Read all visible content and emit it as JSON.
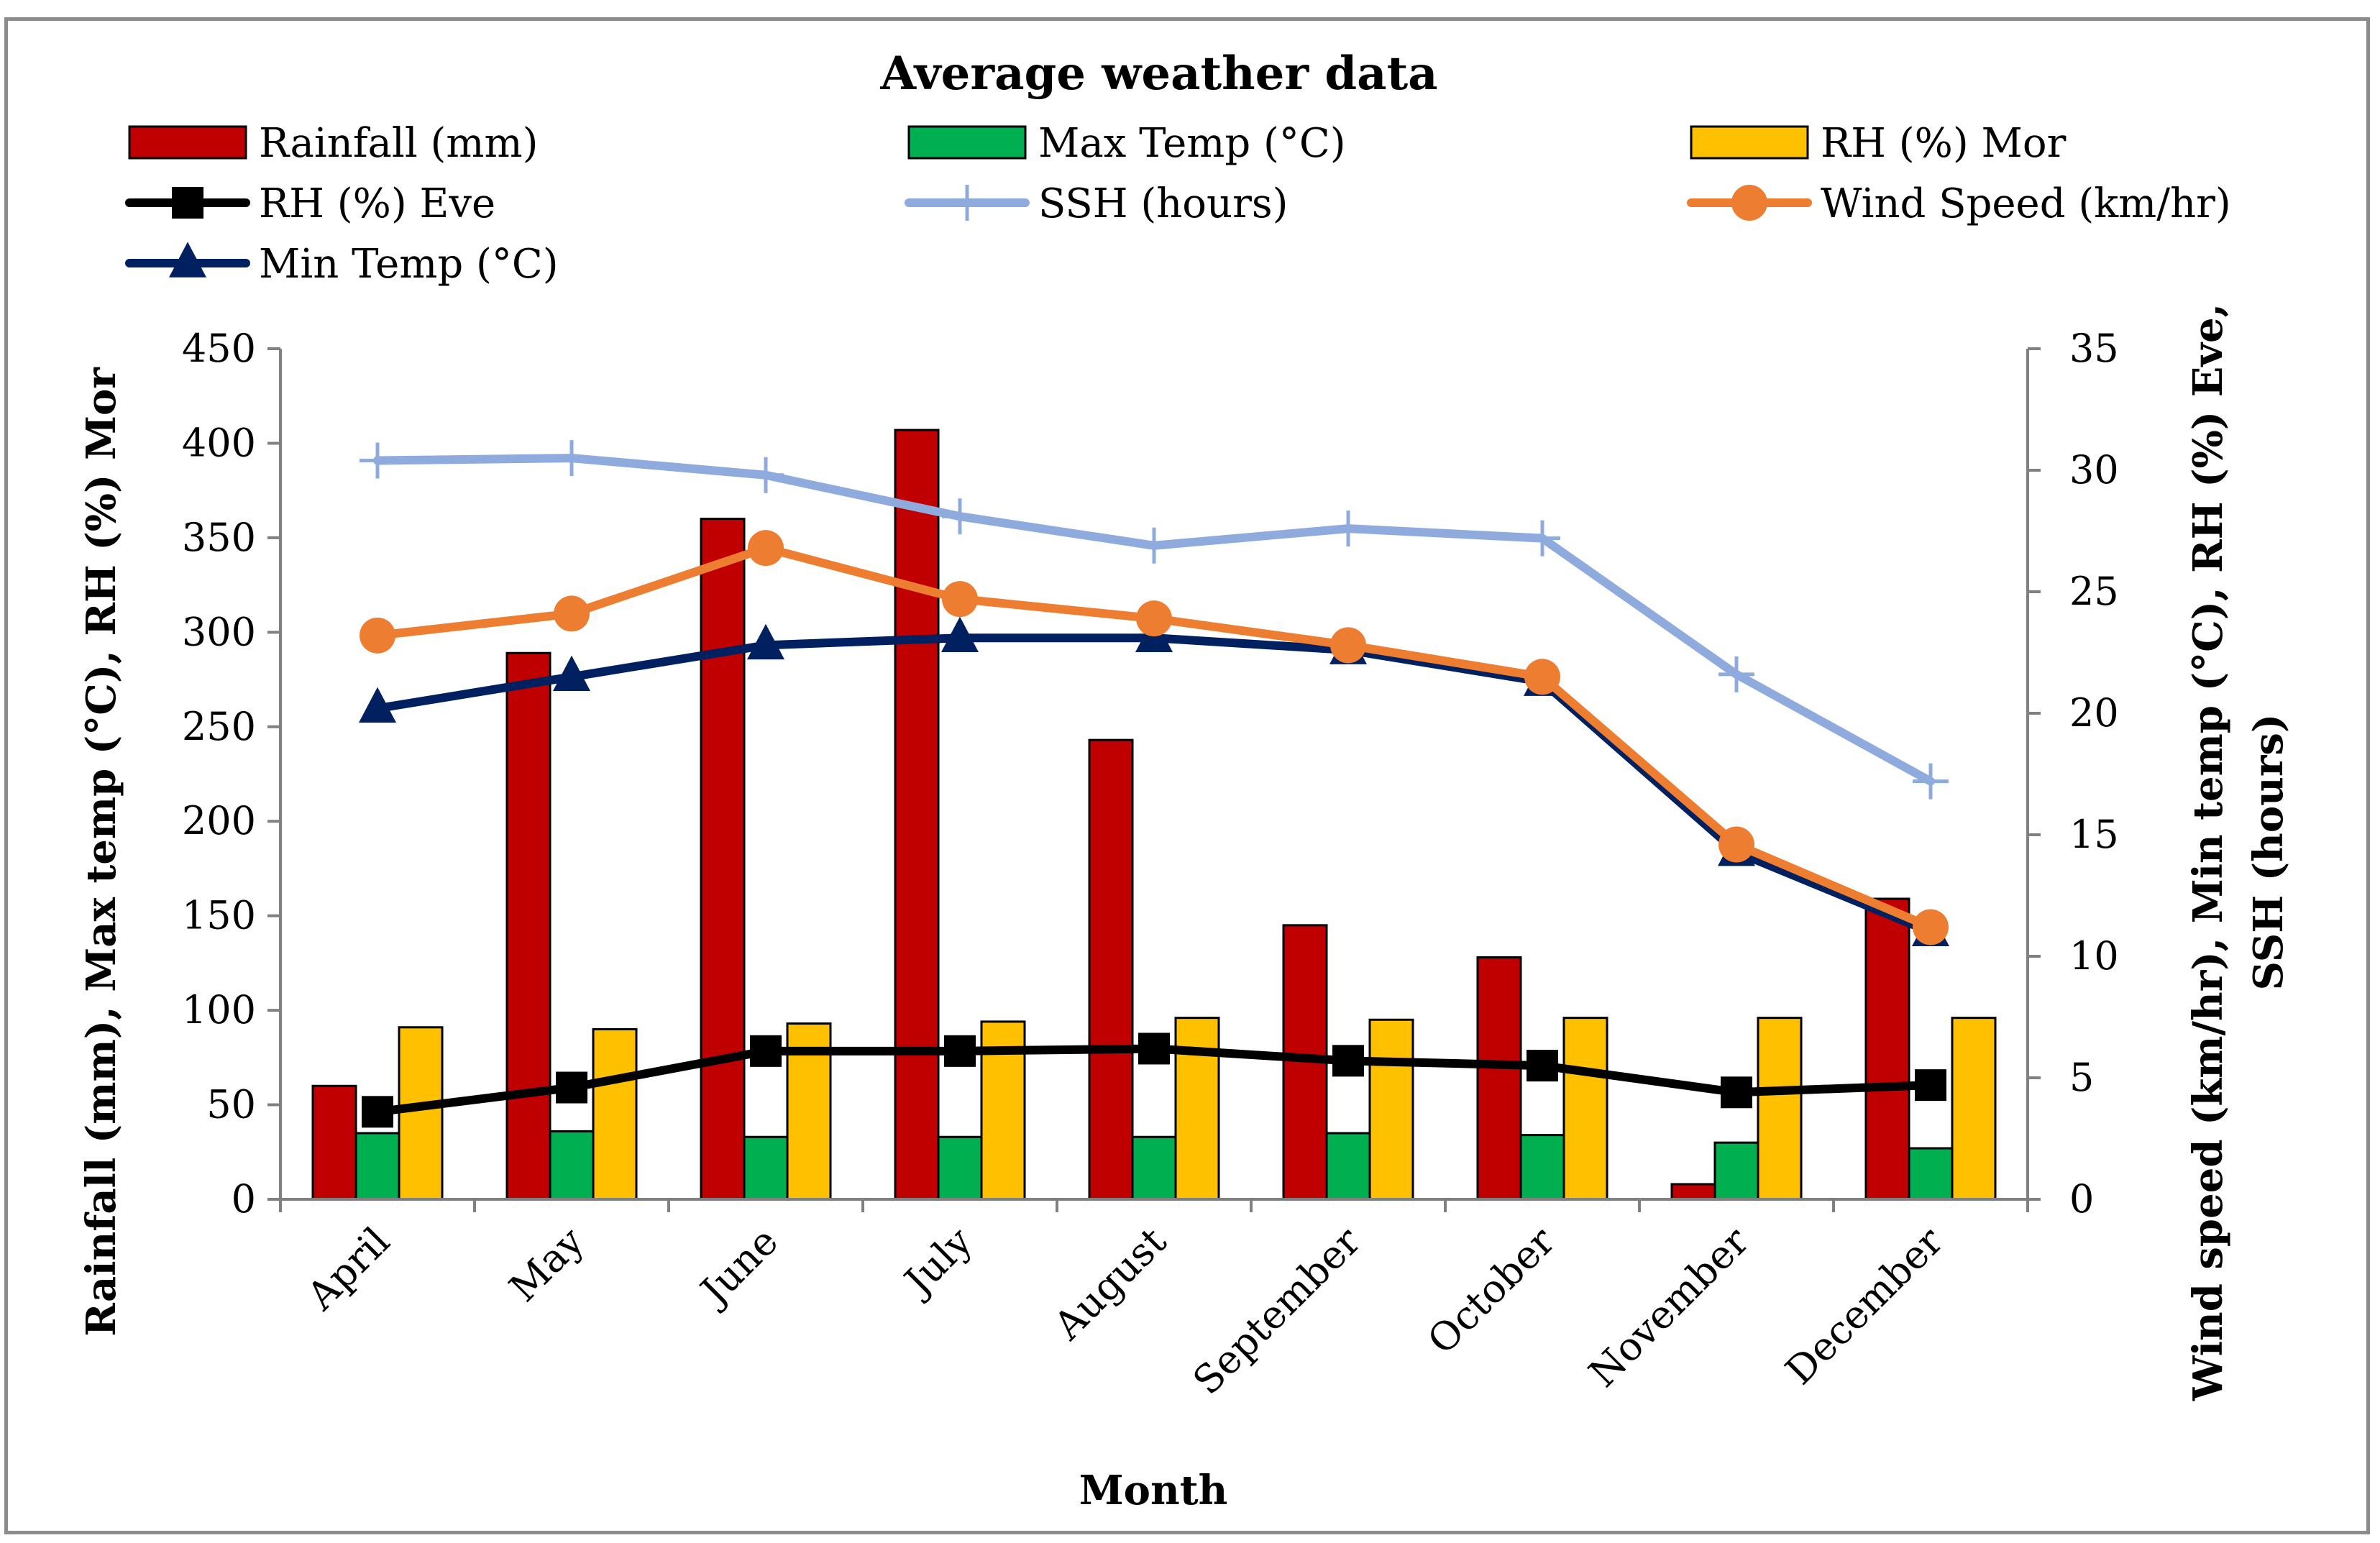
{
  "chart_data": {
    "type": "bar",
    "title": "Average weather data",
    "xlabel": "Month",
    "ylabel_left": "Rainfall  (mm), Max temp (°C), RH (%) Mor",
    "ylabel_right_line1": "Wind speed (km/hr), Min temp (°C), RH (%) Eve,",
    "ylabel_right_line2": "SSH (hours)",
    "ylim_left": [
      0,
      450
    ],
    "ylim_right": [
      0,
      35
    ],
    "yticks_left": [
      0,
      50,
      100,
      150,
      200,
      250,
      300,
      350,
      400,
      450
    ],
    "yticks_right": [
      0,
      5,
      10,
      15,
      20,
      25,
      30,
      35
    ],
    "grid": false,
    "legend_position": "top",
    "categories": [
      "April",
      "May",
      "June",
      "July",
      "August",
      "September",
      "October",
      "November",
      "December"
    ],
    "series": [
      {
        "name": "Rainfall (mm)",
        "kind": "bar",
        "axis": "left",
        "color": "#c00000",
        "values": [
          60,
          289,
          360,
          407,
          243,
          145,
          128,
          8,
          159
        ]
      },
      {
        "name": "Max Temp (°C)",
        "kind": "bar",
        "axis": "left",
        "color": "#00b050",
        "values": [
          35,
          36,
          33,
          33,
          33,
          35,
          34,
          30,
          27
        ]
      },
      {
        "name": "RH (%) Mor",
        "kind": "bar",
        "axis": "left",
        "color": "#ffc000",
        "values": [
          91,
          90,
          93,
          94,
          96,
          95,
          96,
          96,
          96
        ]
      },
      {
        "name": "RH (%) Eve",
        "kind": "line",
        "axis": "right",
        "color": "#000000",
        "marker": "square",
        "values": [
          3.6,
          4.6,
          6.1,
          6.1,
          6.2,
          5.7,
          5.5,
          4.4,
          4.7
        ]
      },
      {
        "name": "SSH (hours)",
        "kind": "line",
        "axis": "right",
        "color": "#8faadc",
        "marker": "plus",
        "values": [
          30.4,
          30.5,
          29.8,
          28.1,
          26.9,
          27.6,
          27.2,
          21.6,
          17.2
        ]
      },
      {
        "name": "Wind Speed (km/hr)",
        "kind": "line",
        "axis": "right",
        "color": "#ed7d31",
        "marker": "circle",
        "values": [
          23.2,
          24.1,
          26.8,
          24.7,
          23.9,
          22.8,
          21.5,
          14.6,
          11.2
        ]
      },
      {
        "name": "Min Temp (°C)",
        "kind": "line",
        "axis": "right",
        "color": "#002060",
        "marker": "triangle",
        "values": [
          20.2,
          21.5,
          22.8,
          23.1,
          23.1,
          22.6,
          21.3,
          14.3,
          11.0
        ]
      }
    ]
  }
}
